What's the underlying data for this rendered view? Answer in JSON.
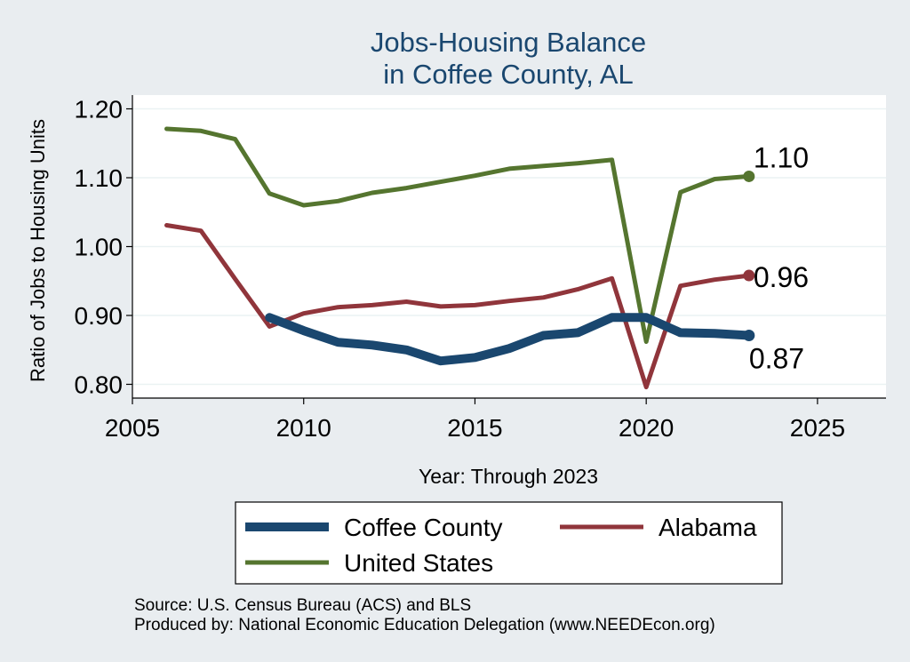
{
  "chart_data": {
    "type": "line",
    "title": [
      "Jobs-Housing Balance",
      "in Coffee County, AL"
    ],
    "xlabel": "Year: Through 2023",
    "ylabel": "Ratio of Jobs to Housing Units",
    "xlim": [
      2005,
      2027
    ],
    "ylim": [
      0.78,
      1.22
    ],
    "xticks": [
      2005,
      2010,
      2015,
      2020,
      2025
    ],
    "yticks": [
      0.8,
      0.9,
      1.0,
      1.1,
      1.2
    ],
    "ytick_labels": [
      "0.80",
      "0.90",
      "1.00",
      "1.10",
      "1.20"
    ],
    "grid": true,
    "legend_position": "bottom",
    "series": [
      {
        "name": "Coffee County",
        "color": "#1a476f",
        "x": [
          2009,
          2010,
          2011,
          2012,
          2013,
          2014,
          2015,
          2016,
          2017,
          2018,
          2019,
          2020,
          2021,
          2022,
          2023
        ],
        "values": [
          0.897,
          0.878,
          0.861,
          0.857,
          0.85,
          0.834,
          0.839,
          0.852,
          0.871,
          0.875,
          0.897,
          0.897,
          0.875,
          0.874,
          0.871
        ],
        "end_label": "0.87"
      },
      {
        "name": "Alabama",
        "color": "#90353b",
        "x": [
          2006,
          2007,
          2008,
          2009,
          2010,
          2011,
          2012,
          2013,
          2014,
          2015,
          2016,
          2017,
          2018,
          2019,
          2020,
          2021,
          2022,
          2023
        ],
        "values": [
          1.031,
          1.023,
          0.953,
          0.884,
          0.903,
          0.912,
          0.915,
          0.92,
          0.913,
          0.915,
          0.921,
          0.926,
          0.938,
          0.954,
          0.796,
          0.943,
          0.952,
          0.958
        ],
        "end_label": "0.96"
      },
      {
        "name": "United States",
        "color": "#55752f",
        "x": [
          2006,
          2007,
          2008,
          2009,
          2010,
          2011,
          2012,
          2013,
          2014,
          2015,
          2016,
          2017,
          2018,
          2019,
          2020,
          2021,
          2022,
          2023
        ],
        "values": [
          1.171,
          1.168,
          1.156,
          1.077,
          1.06,
          1.066,
          1.078,
          1.085,
          1.094,
          1.103,
          1.113,
          1.117,
          1.121,
          1.126,
          0.862,
          1.079,
          1.098,
          1.102
        ],
        "end_label": "1.10"
      }
    ],
    "source": "Source: U.S. Census Bureau (ACS) and BLS",
    "producer": "Produced by: National Economic Education Delegation (www.NEEDEcon.org)"
  }
}
